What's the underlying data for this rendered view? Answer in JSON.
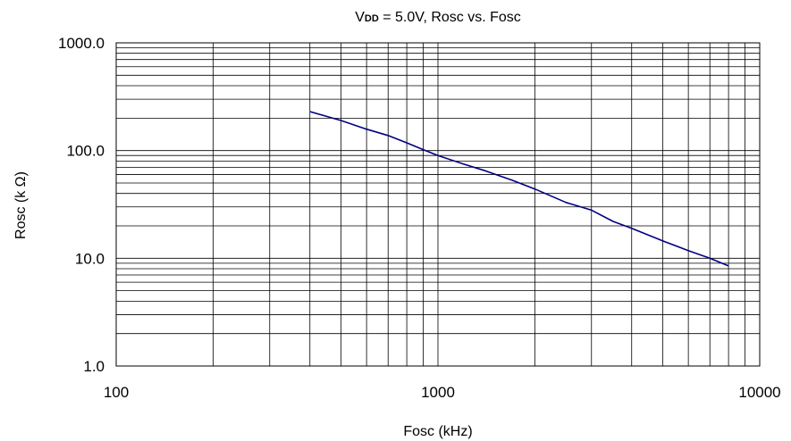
{
  "chart_data": {
    "type": "line",
    "title": "VDD = 5.0V, Rosc vs. Fosc",
    "title_parts": {
      "v": "V",
      "sub": "DD",
      "rest": " = 5.0V, Rosc vs. Fosc"
    },
    "xlabel": "Fosc (kHz)",
    "ylabel": "Rosc (k Ω)",
    "x_scale": "log",
    "y_scale": "log",
    "xlim": [
      100,
      10000
    ],
    "ylim": [
      1,
      1000
    ],
    "x_ticks": [
      "100",
      "1000",
      "10000"
    ],
    "y_ticks": [
      "1.0",
      "10.0",
      "100.0",
      "1000.0"
    ],
    "grid": true,
    "legend": "none",
    "series": [
      {
        "color": "#000080",
        "x": [
          400,
          500,
          600,
          700,
          800,
          900,
          1000,
          1200,
          1400,
          1700,
          2000,
          2500,
          3000,
          3500,
          4000,
          5000,
          6000,
          7000,
          8000
        ],
        "y": [
          230,
          190,
          158,
          138,
          118,
          102,
          90,
          75,
          65,
          53,
          44,
          33,
          28,
          22,
          19,
          14.5,
          11.8,
          10,
          8.5
        ]
      }
    ]
  }
}
